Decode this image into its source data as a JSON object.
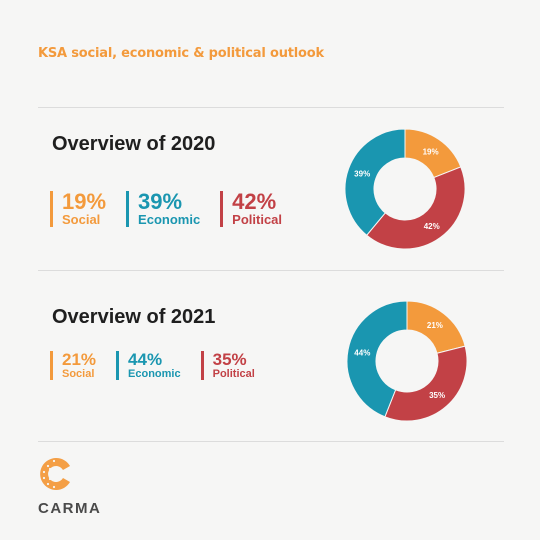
{
  "header": {
    "title": "KSA social, economic & political outlook"
  },
  "brand": {
    "name": "CARMA"
  },
  "colors": {
    "social": "#f39a3c",
    "economic": "#1a96b0",
    "political": "#c24146",
    "title": "#f39a3c"
  },
  "chart_data": [
    {
      "type": "pie",
      "title": "Overview of 2020",
      "categories": [
        "Social",
        "Economic",
        "Political"
      ],
      "values": [
        19,
        39,
        42
      ],
      "labels": [
        "19%",
        "39%",
        "42%"
      ],
      "slice_order": [
        "Social",
        "Political",
        "Economic"
      ]
    },
    {
      "type": "pie",
      "title": "Overview of 2021",
      "categories": [
        "Social",
        "Economic",
        "Political"
      ],
      "values": [
        21,
        44,
        35
      ],
      "labels": [
        "21%",
        "44%",
        "35%"
      ],
      "slice_order": [
        "Social",
        "Political",
        "Economic"
      ]
    }
  ]
}
